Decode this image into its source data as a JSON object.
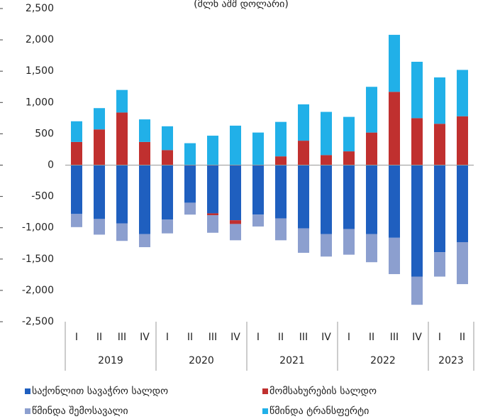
{
  "chart_data": {
    "type": "stacked-bar",
    "subtitle": "(მლნ აშშ დოლარი)",
    "categories": [
      "I",
      "II",
      "III",
      "IV",
      "I",
      "II",
      "III",
      "IV",
      "I",
      "II",
      "III",
      "IV",
      "I",
      "II",
      "III",
      "IV",
      "I",
      "II"
    ],
    "groups": [
      {
        "name": "2019",
        "size": 4
      },
      {
        "name": "2020",
        "size": 4
      },
      {
        "name": "2021",
        "size": 4
      },
      {
        "name": "2022",
        "size": 4
      },
      {
        "name": "2023",
        "size": 2
      }
    ],
    "series": [
      {
        "name": "საქონლით სავაჭრო სალდო",
        "color": "#1f5fbf",
        "values": [
          -780,
          -860,
          -930,
          -1100,
          -870,
          -600,
          -770,
          -880,
          -790,
          -850,
          -1010,
          -1100,
          -1020,
          -1100,
          -1160,
          -1780,
          -1390,
          -1230
        ]
      },
      {
        "name": "მომსახურების სალდო",
        "color": "#c0302f",
        "values": [
          370,
          570,
          840,
          370,
          240,
          0,
          -30,
          -60,
          0,
          140,
          390,
          160,
          220,
          520,
          1170,
          750,
          660,
          780
        ]
      },
      {
        "name": "წმინდა შემოსავალი",
        "color": "#8c9fcf",
        "values": [
          -210,
          -250,
          -280,
          -210,
          -220,
          -190,
          -280,
          -260,
          -190,
          -350,
          -390,
          -360,
          -410,
          -450,
          -580,
          -450,
          -390,
          -670
        ]
      },
      {
        "name": "წმინდა ტრანსფერტი",
        "color": "#21b0e8",
        "values": [
          330,
          340,
          360,
          360,
          380,
          350,
          470,
          630,
          520,
          550,
          580,
          690,
          550,
          730,
          910,
          900,
          740,
          740
        ]
      }
    ],
    "ylim": [
      -2500,
      2500
    ],
    "yticks": [
      {
        "value": -2500,
        "label": "-2,500"
      },
      {
        "value": -2000,
        "label": "-2,000"
      },
      {
        "value": -1500,
        "label": "-1,500"
      },
      {
        "value": -1000,
        "label": "-1,000"
      },
      -500,
      0,
      500,
      {
        "value": 1000,
        "label": "1,000"
      },
      {
        "value": 1500,
        "label": "1,500"
      },
      {
        "value": 2000,
        "label": "2,000"
      },
      {
        "value": 2500,
        "label": "2,500"
      }
    ]
  }
}
